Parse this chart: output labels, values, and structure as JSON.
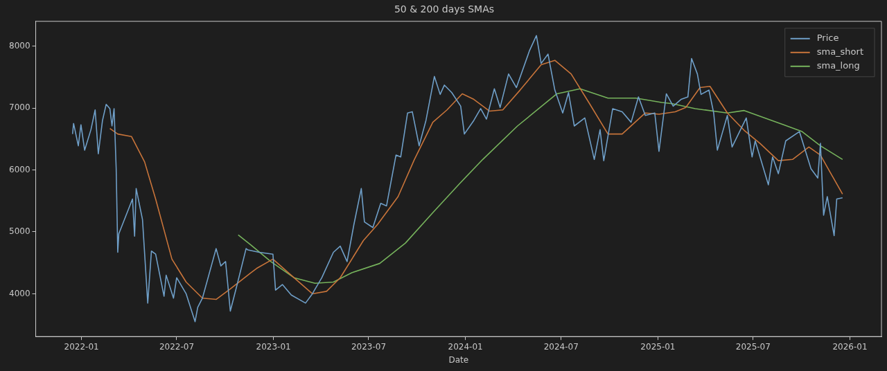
{
  "chart_data": {
    "type": "line",
    "title": "50 & 200 days SMAs",
    "xlabel": "Date",
    "xlim": [
      "2021-10-06",
      "2026-03-02"
    ],
    "ylim": [
      3310,
      8400
    ],
    "xticks": [
      "2022-01",
      "2022-07",
      "2023-01",
      "2023-07",
      "2024-01",
      "2024-07",
      "2025-01",
      "2025-07",
      "2026-01"
    ],
    "yticks": [
      4000,
      5000,
      6000,
      7000,
      8000
    ],
    "grid": false,
    "legend": "top right",
    "marker": "none",
    "line_style": "solid",
    "series": [
      {
        "name": "Price",
        "color": "#6f9fc8",
        "x": [
          "2021-12-15",
          "2021-12-17",
          "2021-12-26",
          "2021-12-31",
          "2022-01-07",
          "2022-01-19",
          "2022-01-27",
          "2022-02-02",
          "2022-02-10",
          "2022-02-17",
          "2022-02-24",
          "2022-02-28",
          "2022-03-04",
          "2022-03-08",
          "2022-03-11",
          "2022-03-13",
          "2022-04-08",
          "2022-04-12",
          "2022-04-15",
          "2022-04-27",
          "2022-05-07",
          "2022-05-14",
          "2022-05-22",
          "2022-06-07",
          "2022-06-11",
          "2022-06-25",
          "2022-07-01",
          "2022-07-19",
          "2022-08-05",
          "2022-08-10",
          "2022-08-19",
          "2022-09-14",
          "2022-09-23",
          "2022-10-02",
          "2022-10-11",
          "2022-10-24",
          "2022-11-10",
          "2022-11-13",
          "2022-12-05",
          "2022-12-31",
          "2023-01-05",
          "2023-01-18",
          "2023-02-04",
          "2023-03-03",
          "2023-03-16",
          "2023-04-03",
          "2023-04-25",
          "2023-05-08",
          "2023-05-21",
          "2023-06-03",
          "2023-06-17",
          "2023-06-23",
          "2023-07-09",
          "2023-07-24",
          "2023-08-04",
          "2023-08-22",
          "2023-08-31",
          "2023-09-13",
          "2023-09-22",
          "2023-10-05",
          "2023-10-18",
          "2023-11-03",
          "2023-11-14",
          "2023-11-22",
          "2023-12-06",
          "2023-12-23",
          "2023-12-30",
          "2024-01-17",
          "2024-01-30",
          "2024-02-10",
          "2024-02-25",
          "2024-03-07",
          "2024-03-23",
          "2024-04-07",
          "2024-05-02",
          "2024-05-15",
          "2024-05-24",
          "2024-06-06",
          "2024-06-19",
          "2024-07-04",
          "2024-07-15",
          "2024-07-26",
          "2024-08-15",
          "2024-09-02",
          "2024-09-13",
          "2024-09-20",
          "2024-10-07",
          "2024-10-25",
          "2024-11-11",
          "2024-11-25",
          "2024-12-08",
          "2024-12-26",
          "2025-01-03",
          "2025-01-17",
          "2025-01-30",
          "2025-02-14",
          "2025-02-27",
          "2025-03-06",
          "2025-03-17",
          "2025-03-24",
          "2025-04-08",
          "2025-04-17",
          "2025-04-24",
          "2025-05-13",
          "2025-05-22",
          "2025-06-18",
          "2025-06-29",
          "2025-07-05",
          "2025-07-30",
          "2025-08-07",
          "2025-08-18",
          "2025-09-01",
          "2025-09-27",
          "2025-10-19",
          "2025-11-01",
          "2025-11-06",
          "2025-11-12",
          "2025-11-19",
          "2025-12-02",
          "2025-12-07",
          "2025-12-18"
        ],
        "values": [
          6580,
          6750,
          6390,
          6730,
          6320,
          6650,
          6970,
          6260,
          6800,
          7060,
          6990,
          6710,
          6990,
          6020,
          4670,
          4970,
          5530,
          4930,
          5700,
          5200,
          3850,
          4690,
          4640,
          3960,
          4300,
          3930,
          4260,
          4000,
          3550,
          3780,
          3930,
          4730,
          4450,
          4520,
          3720,
          4150,
          4730,
          4710,
          4670,
          4640,
          4060,
          4150,
          3980,
          3850,
          4000,
          4260,
          4670,
          4770,
          4520,
          5120,
          5700,
          5160,
          5070,
          5460,
          5420,
          6240,
          6210,
          6920,
          6940,
          6390,
          6800,
          7510,
          7220,
          7370,
          7250,
          7030,
          6580,
          6800,
          6990,
          6820,
          7310,
          7010,
          7550,
          7330,
          7930,
          8170,
          7720,
          7870,
          7290,
          6920,
          7250,
          6710,
          6840,
          6170,
          6650,
          6150,
          6990,
          6940,
          6770,
          7180,
          6880,
          6920,
          6300,
          7230,
          7030,
          7140,
          7180,
          7800,
          7550,
          7220,
          7290,
          6920,
          6320,
          6880,
          6370,
          6840,
          6210,
          6470,
          5760,
          6210,
          5940,
          6470,
          6620,
          6020,
          5870,
          6430,
          5270,
          5570,
          4940,
          5530,
          5550
        ]
      },
      {
        "name": "sma_short",
        "color": "#c8743a",
        "x": [
          "2022-02-24",
          "2022-03-11",
          "2022-04-06",
          "2022-05-01",
          "2022-05-22",
          "2022-06-22",
          "2022-07-19",
          "2022-08-19",
          "2022-09-14",
          "2022-10-11",
          "2022-11-19",
          "2022-11-30",
          "2022-12-31",
          "2023-02-09",
          "2023-03-16",
          "2023-04-12",
          "2023-05-08",
          "2023-06-21",
          "2023-07-18",
          "2023-08-26",
          "2023-09-26",
          "2023-10-31",
          "2023-11-27",
          "2023-12-26",
          "2024-01-17",
          "2024-02-16",
          "2024-03-12",
          "2024-04-14",
          "2024-05-24",
          "2024-06-19",
          "2024-07-20",
          "2024-08-24",
          "2024-09-28",
          "2024-10-25",
          "2024-12-08",
          "2025-01-03",
          "2025-02-03",
          "2025-02-23",
          "2025-03-22",
          "2025-04-10",
          "2025-05-13",
          "2025-06-14",
          "2025-07-14",
          "2025-08-18",
          "2025-09-14",
          "2025-10-15",
          "2025-11-06",
          "2025-11-28",
          "2025-12-18"
        ],
        "values": [
          6670,
          6580,
          6540,
          6130,
          5530,
          4560,
          4190,
          3930,
          3910,
          4080,
          4340,
          4410,
          4560,
          4260,
          4000,
          4040,
          4260,
          4860,
          5120,
          5570,
          6170,
          6770,
          6970,
          7230,
          7140,
          6950,
          6970,
          7290,
          7700,
          7770,
          7550,
          7070,
          6580,
          6580,
          6920,
          6900,
          6940,
          7010,
          7330,
          7350,
          6920,
          6640,
          6430,
          6150,
          6170,
          6370,
          6240,
          5910,
          5610
        ]
      },
      {
        "name": "sma_long",
        "color": "#76b35c",
        "x": [
          "2022-10-26",
          "2022-11-19",
          "2022-12-27",
          "2023-02-09",
          "2023-03-21",
          "2023-04-25",
          "2023-05-30",
          "2023-07-22",
          "2023-09-09",
          "2023-10-31",
          "2023-12-21",
          "2024-02-03",
          "2024-04-09",
          "2024-06-23",
          "2024-08-06",
          "2024-09-28",
          "2024-11-20",
          "2025-01-08",
          "2025-01-28",
          "2025-03-13",
          "2025-05-13",
          "2025-06-14",
          "2025-08-28",
          "2025-10-02",
          "2025-11-06",
          "2025-12-18"
        ],
        "values": [
          4950,
          4790,
          4520,
          4260,
          4170,
          4190,
          4340,
          4490,
          4820,
          5310,
          5780,
          6170,
          6710,
          7230,
          7310,
          7160,
          7160,
          7090,
          7070,
          6990,
          6920,
          6960,
          6730,
          6620,
          6390,
          6170
        ]
      }
    ]
  }
}
